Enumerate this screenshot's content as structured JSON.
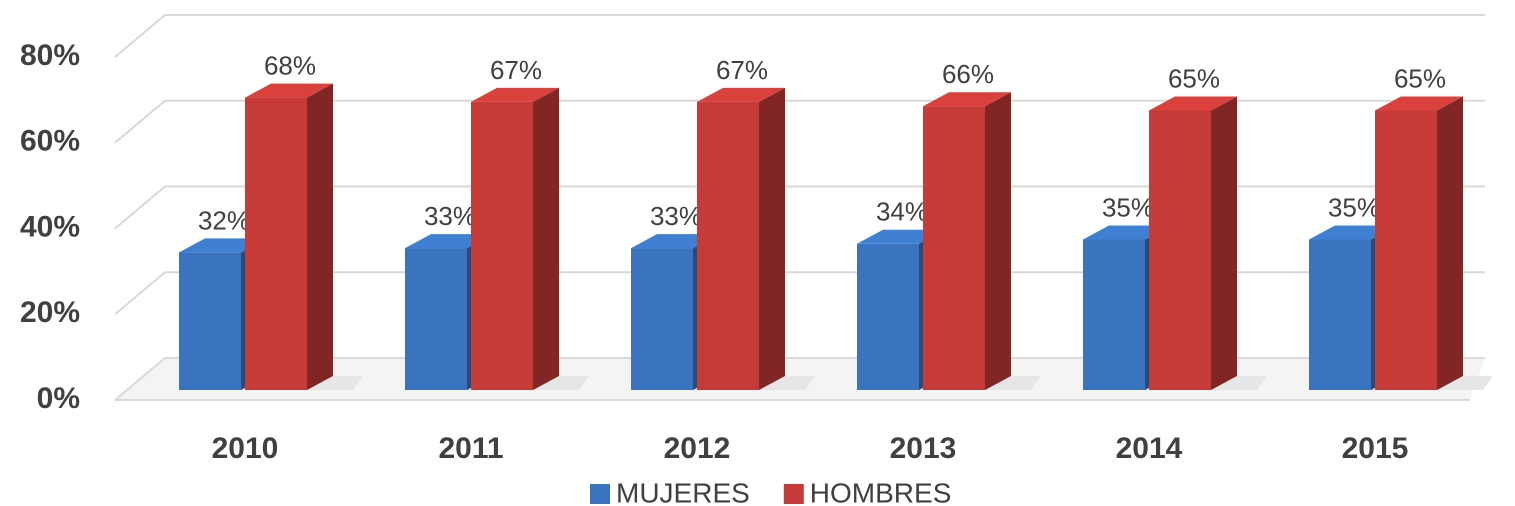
{
  "chart_data": {
    "type": "bar3d",
    "categories": [
      "2010",
      "2011",
      "2012",
      "2013",
      "2014",
      "2015"
    ],
    "series": [
      {
        "name": "MUJERES",
        "color": "#3a74c0",
        "values": [
          32,
          33,
          33,
          34,
          35,
          35
        ],
        "value_labels": [
          "32%",
          "33%",
          "33%",
          "34%",
          "35%",
          "35%"
        ]
      },
      {
        "name": "HOMBRES",
        "color": "#c63b37",
        "values": [
          68,
          67,
          67,
          66,
          65,
          65
        ],
        "value_labels": [
          "68%",
          "67%",
          "67%",
          "66%",
          "65%",
          "65%"
        ]
      }
    ],
    "ylim": [
      0,
      80
    ],
    "yticks": [
      {
        "value": 0,
        "label": "0%"
      },
      {
        "value": 20,
        "label": "20%"
      },
      {
        "value": 40,
        "label": "40%"
      },
      {
        "value": 60,
        "label": "60%"
      },
      {
        "value": 80,
        "label": "80%"
      }
    ],
    "grid": true,
    "legend": "bottom"
  }
}
